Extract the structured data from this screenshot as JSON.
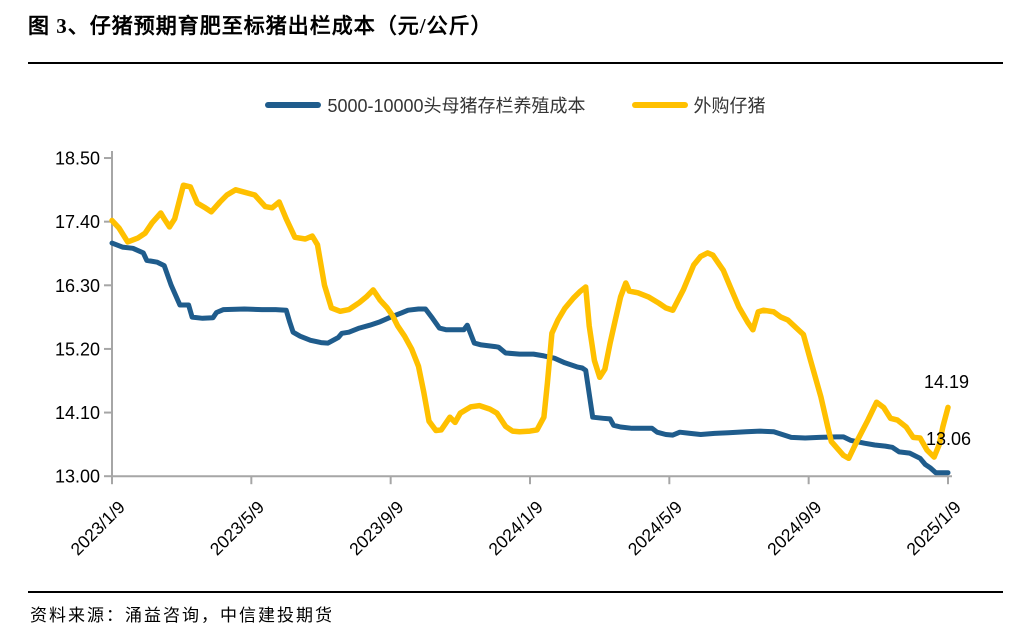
{
  "title": "图 3、仔猪预期育肥至标猪出栏成本（元/公斤）",
  "legend": {
    "series1": "5000-10000头母猪存栏养殖成本",
    "series2": "外购仔猪"
  },
  "source": "资料来源：涌益咨询，中信建投期货",
  "colors": {
    "blue": "#1F5C8C",
    "yellow": "#FFC000",
    "axis": "#A6A6A6"
  },
  "chart_data": {
    "type": "line",
    "title": "仔猪预期育肥至标猪出栏成本",
    "ylabel_unit": "元/公斤",
    "legend_position": "top-center",
    "grid": false,
    "x_axis": {
      "tick_labels": [
        "2023/1/9",
        "2023/5/9",
        "2023/9/9",
        "2024/1/9",
        "2024/5/9",
        "2024/9/9",
        "2025/1/9"
      ],
      "months_per_tick": 4,
      "range_months": [
        0,
        24
      ]
    },
    "y_axis": {
      "tick_labels": [
        "18.50",
        "17.40",
        "16.30",
        "15.20",
        "14.10",
        "13.00"
      ],
      "min": 13.0,
      "max": 18.5,
      "step": 1.1
    },
    "series": [
      {
        "name": "5000-10000头母猪存栏养殖成本",
        "color": "#1F5C8C",
        "end_label": "13.06",
        "points": [
          [
            0,
            17.03
          ],
          [
            0.3,
            16.96
          ],
          [
            0.6,
            16.94
          ],
          [
            0.9,
            16.86
          ],
          [
            1.0,
            16.73
          ],
          [
            1.3,
            16.7
          ],
          [
            1.5,
            16.64
          ],
          [
            1.7,
            16.3
          ],
          [
            1.95,
            15.96
          ],
          [
            2.2,
            15.96
          ],
          [
            2.3,
            15.75
          ],
          [
            2.6,
            15.73
          ],
          [
            2.9,
            15.74
          ],
          [
            3.0,
            15.83
          ],
          [
            3.2,
            15.88
          ],
          [
            3.8,
            15.89
          ],
          [
            4.3,
            15.88
          ],
          [
            4.7,
            15.88
          ],
          [
            5.0,
            15.87
          ],
          [
            5.1,
            15.67
          ],
          [
            5.2,
            15.49
          ],
          [
            5.4,
            15.42
          ],
          [
            5.7,
            15.35
          ],
          [
            6.0,
            15.31
          ],
          [
            6.2,
            15.3
          ],
          [
            6.5,
            15.4
          ],
          [
            6.6,
            15.47
          ],
          [
            6.8,
            15.49
          ],
          [
            7.1,
            15.56
          ],
          [
            7.4,
            15.61
          ],
          [
            7.7,
            15.67
          ],
          [
            8.0,
            15.75
          ],
          [
            8.3,
            15.82
          ],
          [
            8.5,
            15.87
          ],
          [
            8.8,
            15.89
          ],
          [
            9.0,
            15.89
          ],
          [
            9.2,
            15.73
          ],
          [
            9.4,
            15.56
          ],
          [
            9.6,
            15.53
          ],
          [
            10.1,
            15.53
          ],
          [
            10.2,
            15.61
          ],
          [
            10.4,
            15.3
          ],
          [
            10.6,
            15.27
          ],
          [
            11.0,
            15.24
          ],
          [
            11.1,
            15.23
          ],
          [
            11.3,
            15.13
          ],
          [
            11.7,
            15.11
          ],
          [
            12.1,
            15.11
          ],
          [
            12.4,
            15.08
          ],
          [
            12.7,
            15.04
          ],
          [
            13.0,
            14.96
          ],
          [
            13.35,
            14.89
          ],
          [
            13.5,
            14.87
          ],
          [
            13.6,
            14.83
          ],
          [
            13.8,
            14.02
          ],
          [
            14.1,
            14.0
          ],
          [
            14.3,
            13.99
          ],
          [
            14.4,
            13.88
          ],
          [
            14.6,
            13.85
          ],
          [
            14.9,
            13.83
          ],
          [
            15.5,
            13.83
          ],
          [
            15.65,
            13.76
          ],
          [
            15.9,
            13.72
          ],
          [
            16.1,
            13.71
          ],
          [
            16.3,
            13.76
          ],
          [
            16.6,
            13.74
          ],
          [
            16.9,
            13.72
          ],
          [
            17.3,
            13.74
          ],
          [
            17.7,
            13.75
          ],
          [
            18.2,
            13.77
          ],
          [
            18.6,
            13.78
          ],
          [
            19.0,
            13.77
          ],
          [
            19.5,
            13.67
          ],
          [
            19.9,
            13.66
          ],
          [
            20.3,
            13.67
          ],
          [
            20.8,
            13.68
          ],
          [
            21.0,
            13.68
          ],
          [
            21.2,
            13.62
          ],
          [
            21.6,
            13.57
          ],
          [
            21.9,
            13.54
          ],
          [
            22.2,
            13.52
          ],
          [
            22.4,
            13.5
          ],
          [
            22.6,
            13.42
          ],
          [
            22.9,
            13.4
          ],
          [
            23.2,
            13.31
          ],
          [
            23.35,
            13.2
          ],
          [
            23.5,
            13.14
          ],
          [
            23.65,
            13.06
          ],
          [
            24,
            13.06
          ]
        ]
      },
      {
        "name": "外购仔猪",
        "color": "#FFC000",
        "end_label": "14.19",
        "points": [
          [
            0,
            17.42
          ],
          [
            0.2,
            17.29
          ],
          [
            0.45,
            17.05
          ],
          [
            0.75,
            17.12
          ],
          [
            0.95,
            17.2
          ],
          [
            1.15,
            17.38
          ],
          [
            1.4,
            17.55
          ],
          [
            1.5,
            17.45
          ],
          [
            1.65,
            17.31
          ],
          [
            1.8,
            17.45
          ],
          [
            2.05,
            18.03
          ],
          [
            2.25,
            18.0
          ],
          [
            2.45,
            17.72
          ],
          [
            2.65,
            17.65
          ],
          [
            2.85,
            17.57
          ],
          [
            3.1,
            17.74
          ],
          [
            3.3,
            17.86
          ],
          [
            3.55,
            17.95
          ],
          [
            3.8,
            17.91
          ],
          [
            4.1,
            17.86
          ],
          [
            4.4,
            17.66
          ],
          [
            4.6,
            17.64
          ],
          [
            4.8,
            17.74
          ],
          [
            5.0,
            17.45
          ],
          [
            5.25,
            17.13
          ],
          [
            5.55,
            17.1
          ],
          [
            5.75,
            17.15
          ],
          [
            5.9,
            17.0
          ],
          [
            6.1,
            16.3
          ],
          [
            6.3,
            15.91
          ],
          [
            6.55,
            15.85
          ],
          [
            6.8,
            15.88
          ],
          [
            6.9,
            15.92
          ],
          [
            7.1,
            16.0
          ],
          [
            7.3,
            16.1
          ],
          [
            7.5,
            16.22
          ],
          [
            7.7,
            16.04
          ],
          [
            7.9,
            15.91
          ],
          [
            8.05,
            15.78
          ],
          [
            8.2,
            15.6
          ],
          [
            8.4,
            15.42
          ],
          [
            8.6,
            15.2
          ],
          [
            8.8,
            14.9
          ],
          [
            8.95,
            14.45
          ],
          [
            9.1,
            13.95
          ],
          [
            9.3,
            13.79
          ],
          [
            9.45,
            13.8
          ],
          [
            9.7,
            14.02
          ],
          [
            9.85,
            13.93
          ],
          [
            10.0,
            14.09
          ],
          [
            10.3,
            14.2
          ],
          [
            10.55,
            14.22
          ],
          [
            10.85,
            14.16
          ],
          [
            11.05,
            14.09
          ],
          [
            11.3,
            13.86
          ],
          [
            11.5,
            13.78
          ],
          [
            11.7,
            13.77
          ],
          [
            12.0,
            13.78
          ],
          [
            12.2,
            13.8
          ],
          [
            12.4,
            14.02
          ],
          [
            12.5,
            14.61
          ],
          [
            12.63,
            15.47
          ],
          [
            12.8,
            15.7
          ],
          [
            13.0,
            15.9
          ],
          [
            13.25,
            16.08
          ],
          [
            13.45,
            16.2
          ],
          [
            13.6,
            16.27
          ],
          [
            13.7,
            15.6
          ],
          [
            13.85,
            15.0
          ],
          [
            14.0,
            14.71
          ],
          [
            14.15,
            14.85
          ],
          [
            14.3,
            15.3
          ],
          [
            14.45,
            15.7
          ],
          [
            14.6,
            16.1
          ],
          [
            14.75,
            16.34
          ],
          [
            14.85,
            16.2
          ],
          [
            15.1,
            16.17
          ],
          [
            15.4,
            16.1
          ],
          [
            15.7,
            15.99
          ],
          [
            15.9,
            15.91
          ],
          [
            16.1,
            15.87
          ],
          [
            16.4,
            16.22
          ],
          [
            16.7,
            16.65
          ],
          [
            16.9,
            16.8
          ],
          [
            17.1,
            16.86
          ],
          [
            17.25,
            16.82
          ],
          [
            17.55,
            16.56
          ],
          [
            17.75,
            16.27
          ],
          [
            18.0,
            15.92
          ],
          [
            18.25,
            15.66
          ],
          [
            18.4,
            15.53
          ],
          [
            18.55,
            15.84
          ],
          [
            18.7,
            15.87
          ],
          [
            19.0,
            15.84
          ],
          [
            19.2,
            15.75
          ],
          [
            19.4,
            15.7
          ],
          [
            19.65,
            15.56
          ],
          [
            19.85,
            15.45
          ],
          [
            20.05,
            15.01
          ],
          [
            20.35,
            14.37
          ],
          [
            20.55,
            13.85
          ],
          [
            20.65,
            13.6
          ],
          [
            21.0,
            13.36
          ],
          [
            21.15,
            13.31
          ],
          [
            21.4,
            13.62
          ],
          [
            21.7,
            13.97
          ],
          [
            21.95,
            14.28
          ],
          [
            22.15,
            14.19
          ],
          [
            22.35,
            14.0
          ],
          [
            22.55,
            13.97
          ],
          [
            22.8,
            13.85
          ],
          [
            23.0,
            13.67
          ],
          [
            23.2,
            13.66
          ],
          [
            23.4,
            13.45
          ],
          [
            23.6,
            13.33
          ],
          [
            23.75,
            13.55
          ],
          [
            23.85,
            13.85
          ],
          [
            24,
            14.19
          ]
        ]
      }
    ]
  }
}
